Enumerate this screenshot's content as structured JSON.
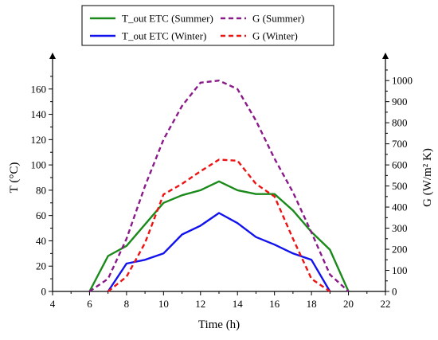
{
  "chart_data": {
    "type": "line",
    "xlabel": "Time (h)",
    "ylabel_left": "T (°C)",
    "ylabel_right": "G (W/m² K)",
    "xlim": [
      4,
      22
    ],
    "ylim_left": [
      0,
      180
    ],
    "ylim_right": [
      0,
      1080
    ],
    "xticks": [
      4,
      6,
      8,
      10,
      12,
      14,
      16,
      18,
      20,
      22
    ],
    "yticks_left": [
      0,
      20,
      40,
      60,
      80,
      100,
      120,
      140,
      160
    ],
    "yticks_right": [
      0,
      100,
      200,
      300,
      400,
      500,
      600,
      700,
      800,
      900,
      1000
    ],
    "grid": false,
    "legend": "top",
    "series": [
      {
        "name": "T_out ETC (Summer)",
        "axis": "left",
        "color": "#1a8a1a",
        "dash": "solid",
        "x": [
          6,
          7,
          8,
          9,
          10,
          11,
          12,
          13,
          14,
          15,
          16,
          17,
          18,
          19,
          20
        ],
        "y": [
          0,
          28,
          36,
          53,
          70,
          76,
          80,
          87,
          80,
          77,
          77,
          64,
          47,
          33,
          0
        ]
      },
      {
        "name": "T_out ETC (Winter)",
        "axis": "left",
        "color": "#1212ee",
        "dash": "solid",
        "x": [
          7,
          8,
          9,
          10,
          11,
          12,
          13,
          14,
          15,
          16,
          17,
          18,
          19
        ],
        "y": [
          0,
          22,
          25,
          30,
          45,
          52,
          62,
          54,
          43,
          37,
          30,
          25,
          0
        ]
      },
      {
        "name": "G (Summer)",
        "axis": "right",
        "color": "#8a1a8a",
        "dash": "dashed",
        "x": [
          6,
          7,
          8,
          9,
          10,
          11,
          12,
          13,
          14,
          15,
          16,
          17,
          18,
          19,
          20
        ],
        "y": [
          0,
          60,
          250,
          500,
          720,
          880,
          990,
          1000,
          960,
          810,
          630,
          470,
          280,
          80,
          0
        ]
      },
      {
        "name": "G (Winter)",
        "axis": "right",
        "color": "#ee1212",
        "dash": "dashed",
        "x": [
          7,
          8,
          9,
          10,
          11,
          12,
          13,
          14,
          15,
          16,
          17,
          18,
          19
        ],
        "y": [
          0,
          70,
          230,
          460,
          510,
          570,
          625,
          620,
          510,
          450,
          250,
          60,
          0
        ]
      }
    ]
  }
}
